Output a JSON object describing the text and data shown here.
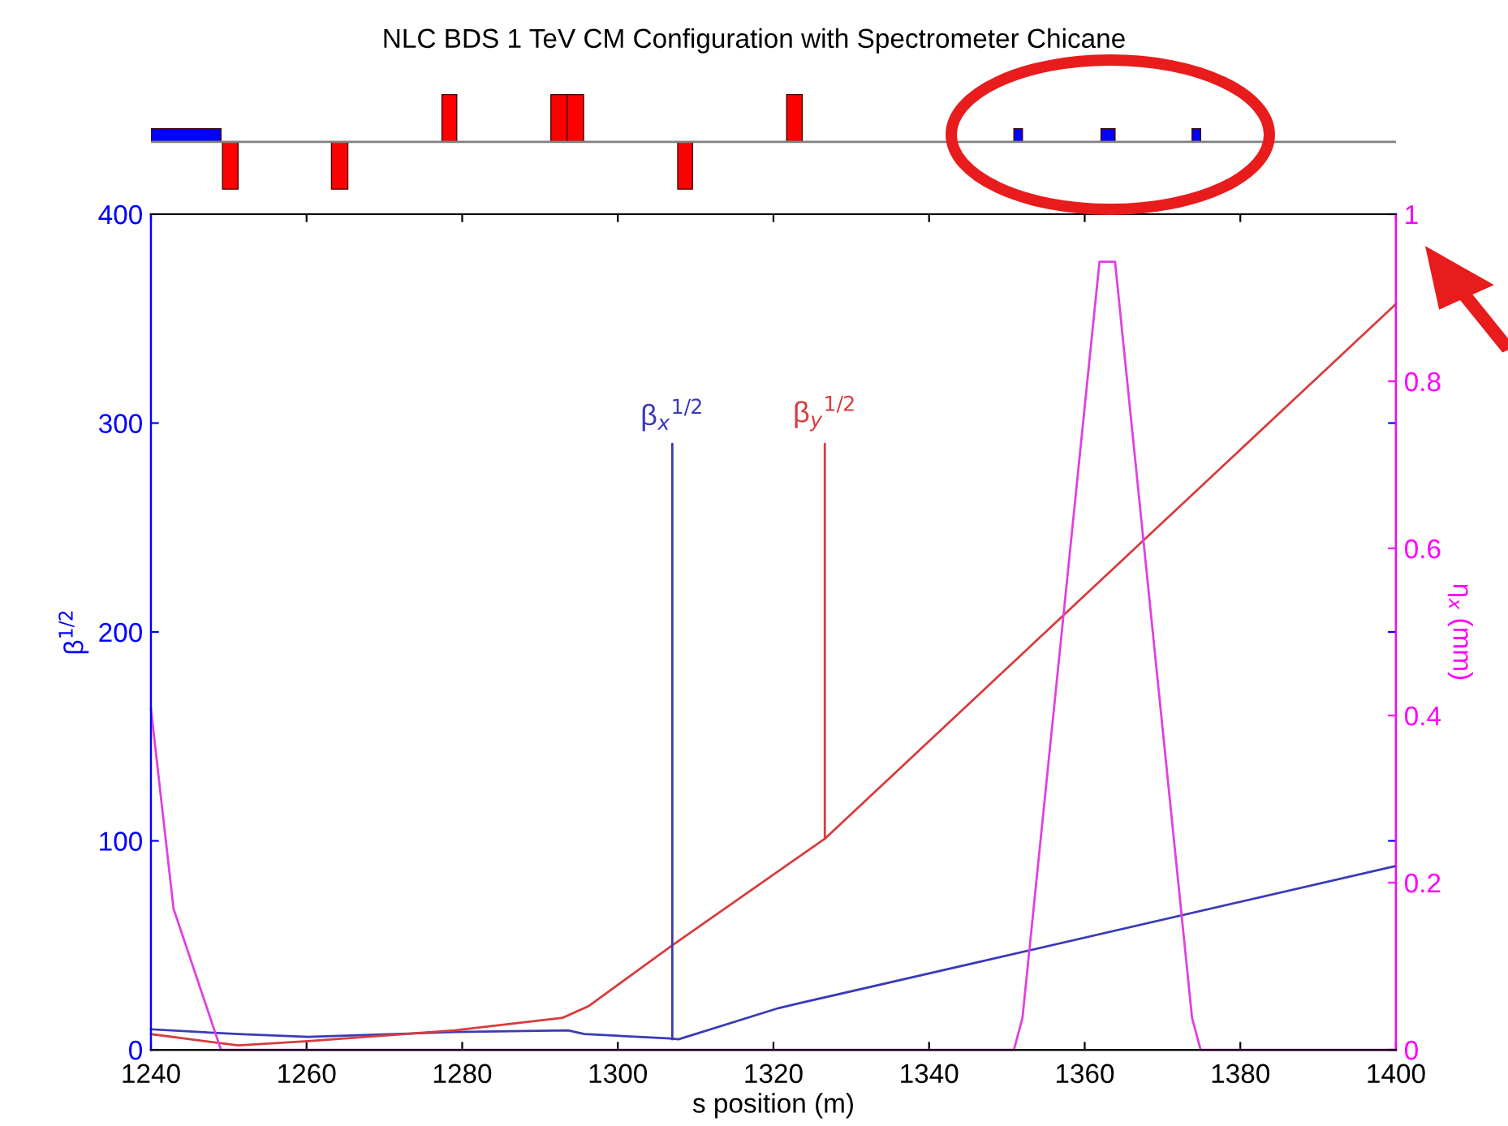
{
  "chart_data": {
    "type": "line",
    "title": "NLC BDS 1 TeV CM Configuration with Spectrometer Chicane",
    "xlabel": "s position (m)",
    "ylabel": "β$^{1/2}$",
    "y2label": "η$_{x}$ (mm)",
    "xlim": [
      1240,
      1400
    ],
    "xticks": [
      1240,
      1260,
      1280,
      1300,
      1320,
      1340,
      1360,
      1380,
      1400
    ],
    "ylim": [
      0,
      400
    ],
    "yticks": [
      0,
      100,
      200,
      300,
      400
    ],
    "y2lim": [
      0,
      1
    ],
    "y2ticks": [
      0,
      0.2,
      0.4,
      0.6,
      0.8,
      1
    ],
    "grid": false,
    "legend": false,
    "marker": "none",
    "line_style": "solid",
    "series": [
      {
        "color": "#3a3ab8",
        "x": [
          1240,
          1251.2,
          1260.2,
          1279,
          1293.6,
          1295.7,
          1306.8,
          1307.8,
          1320.7,
          1323,
          1345.8,
          1400
        ],
        "values": [
          9.8,
          7.5,
          6.2,
          8.5,
          9.3,
          7.5,
          5.4,
          5,
          20,
          22,
          41.5,
          88
        ]
      },
      {
        "color": "#d83c3c",
        "x": [
          1240,
          1251.2,
          1260.2,
          1279,
          1292.9,
          1296.3,
          1306.8,
          1320.7,
          1326.6,
          1345.8,
          1400
        ],
        "values": [
          7.5,
          2.1,
          4.1,
          9.3,
          15.3,
          21,
          49.5,
          85.7,
          101,
          168,
          357
        ]
      },
      {
        "color": "#e040e0",
        "axis": "y2",
        "x": [
          1240,
          1242.9,
          1249,
          1350.9,
          1352,
          1361.9,
          1363.9,
          1373.8,
          1374.9,
          1400
        ],
        "values": [
          0.408,
          0.169,
          0,
          0,
          0.038,
          0.943,
          0.943,
          0.038,
          0,
          0
        ]
      }
    ],
    "annotations": [
      {
        "text": "β$_{x}$$^{1/2}$",
        "x": 1307,
        "y": 5
      },
      {
        "text": "β$_{y}$$^{1/2}$",
        "x": 1326.6,
        "y": 101
      }
    ]
  }
}
